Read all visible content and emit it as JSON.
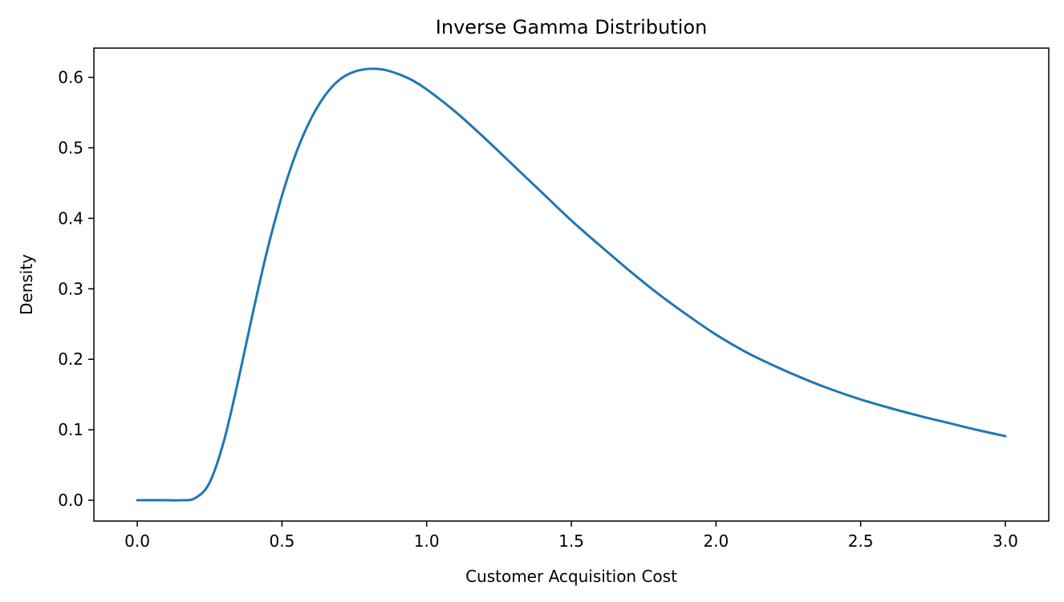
{
  "chart_data": {
    "type": "line",
    "title": "Inverse Gamma Distribution",
    "xlabel": "Customer Acquisition Cost",
    "ylabel": "Density",
    "xlim": [
      -0.15,
      3.15
    ],
    "ylim": [
      -0.0295,
      0.6415
    ],
    "xticks": [
      0.0,
      0.5,
      1.0,
      1.5,
      2.0,
      2.5,
      3.0
    ],
    "xtick_labels": [
      "0.0",
      "0.5",
      "1.0",
      "1.5",
      "2.0",
      "2.5",
      "3.0"
    ],
    "yticks": [
      0.0,
      0.1,
      0.2,
      0.3,
      0.4,
      0.5,
      0.6
    ],
    "ytick_labels": [
      "0.0",
      "0.1",
      "0.2",
      "0.3",
      "0.4",
      "0.5",
      "0.6"
    ],
    "grid": false,
    "legend": "none",
    "series": [
      {
        "color": "#1f77b4",
        "x": [
          0.0,
          0.1,
          0.15,
          0.2,
          0.25,
          0.3,
          0.35,
          0.4,
          0.45,
          0.5,
          0.55,
          0.6,
          0.65,
          0.7,
          0.75,
          0.8,
          0.85,
          0.9,
          0.95,
          1.0,
          1.1,
          1.2,
          1.3,
          1.4,
          1.5,
          1.6,
          1.7,
          1.8,
          1.9,
          2.0,
          2.1,
          2.2,
          2.3,
          2.4,
          2.5,
          2.6,
          2.7,
          2.8,
          2.9,
          3.0
        ],
        "y": [
          0.0,
          0.0,
          0.0,
          0.003,
          0.025,
          0.085,
          0.172,
          0.267,
          0.356,
          0.432,
          0.494,
          0.541,
          0.575,
          0.597,
          0.608,
          0.612,
          0.611,
          0.605,
          0.596,
          0.583,
          0.551,
          0.514,
          0.475,
          0.436,
          0.397,
          0.361,
          0.326,
          0.293,
          0.263,
          0.235,
          0.211,
          0.191,
          0.173,
          0.157,
          0.143,
          0.131,
          0.12,
          0.11,
          0.1,
          0.091
        ]
      }
    ]
  }
}
